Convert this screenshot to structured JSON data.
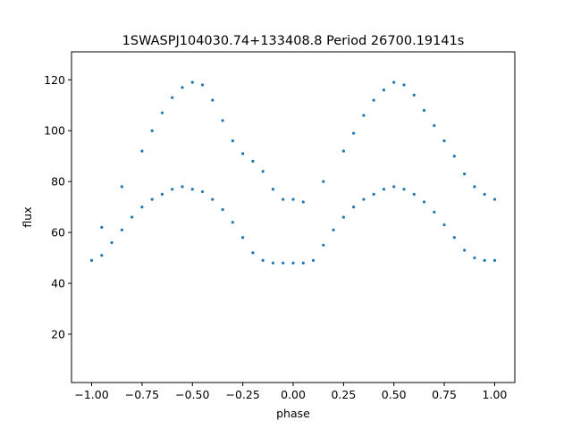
{
  "chart_data": {
    "type": "scatter",
    "title": "1SWASPJ104030.74+133408.8 Period 26700.19141s",
    "xlabel": "phase",
    "ylabel": "flux",
    "xlim": [
      -1.1,
      1.1
    ],
    "ylim": [
      1,
      131
    ],
    "x_ticks": [
      -1.0,
      -0.75,
      -0.5,
      -0.25,
      0.0,
      0.25,
      0.5,
      0.75,
      1.0
    ],
    "x_tick_labels": [
      "−1.00",
      "−0.75",
      "−0.50",
      "−0.25",
      "0.00",
      "0.25",
      "0.50",
      "0.75",
      "1.00"
    ],
    "y_ticks": [
      20,
      40,
      60,
      80,
      100,
      120
    ],
    "y_tick_labels": [
      "20",
      "40",
      "60",
      "80",
      "100",
      "120"
    ],
    "grid": false,
    "legend": "none",
    "point_color": "#1f77b4",
    "series": [
      {
        "x": [
          -1.0,
          -0.95,
          -0.9,
          -0.85,
          -0.8,
          -0.75,
          -0.7,
          -0.65,
          -0.6,
          -0.55,
          -0.5,
          -0.45,
          -0.4,
          -0.35,
          -0.3,
          -0.25,
          -0.2,
          -0.15,
          -0.1,
          -0.05,
          0.0,
          0.05,
          0.1,
          0.15,
          0.2,
          0.25,
          0.3,
          0.35,
          0.4,
          0.45,
          0.5,
          0.55,
          0.6,
          0.65,
          0.7,
          0.75,
          0.8,
          0.85,
          0.9,
          0.95,
          1.0
        ],
        "y": [
          49,
          51,
          56,
          61,
          66,
          70,
          73,
          75,
          77,
          78,
          77,
          76,
          73,
          69,
          64,
          58,
          52,
          49,
          48,
          48,
          48,
          48,
          49,
          55,
          61,
          66,
          70,
          73,
          75,
          77,
          78,
          77,
          75,
          72,
          68,
          63,
          58,
          53,
          50,
          49,
          49
        ]
      },
      {
        "x": [
          -0.95,
          -0.85,
          -0.75,
          -0.7,
          -0.65,
          -0.6,
          -0.55,
          -0.5,
          -0.45,
          -0.4,
          -0.35,
          -0.3,
          -0.25,
          -0.2,
          -0.15,
          -0.1,
          -0.05,
          0.0,
          0.05,
          0.15,
          0.25,
          0.3,
          0.35,
          0.4,
          0.45,
          0.5,
          0.55,
          0.6,
          0.65,
          0.7,
          0.75,
          0.8,
          0.85,
          0.9,
          0.95,
          1.0
        ],
        "y": [
          62,
          78,
          92,
          100,
          107,
          113,
          117,
          119,
          118,
          112,
          104,
          96,
          91,
          88,
          84,
          77,
          73,
          73,
          72,
          80,
          92,
          99,
          106,
          112,
          116,
          119,
          118,
          114,
          108,
          102,
          96,
          90,
          83,
          78,
          75,
          73
        ]
      }
    ]
  }
}
